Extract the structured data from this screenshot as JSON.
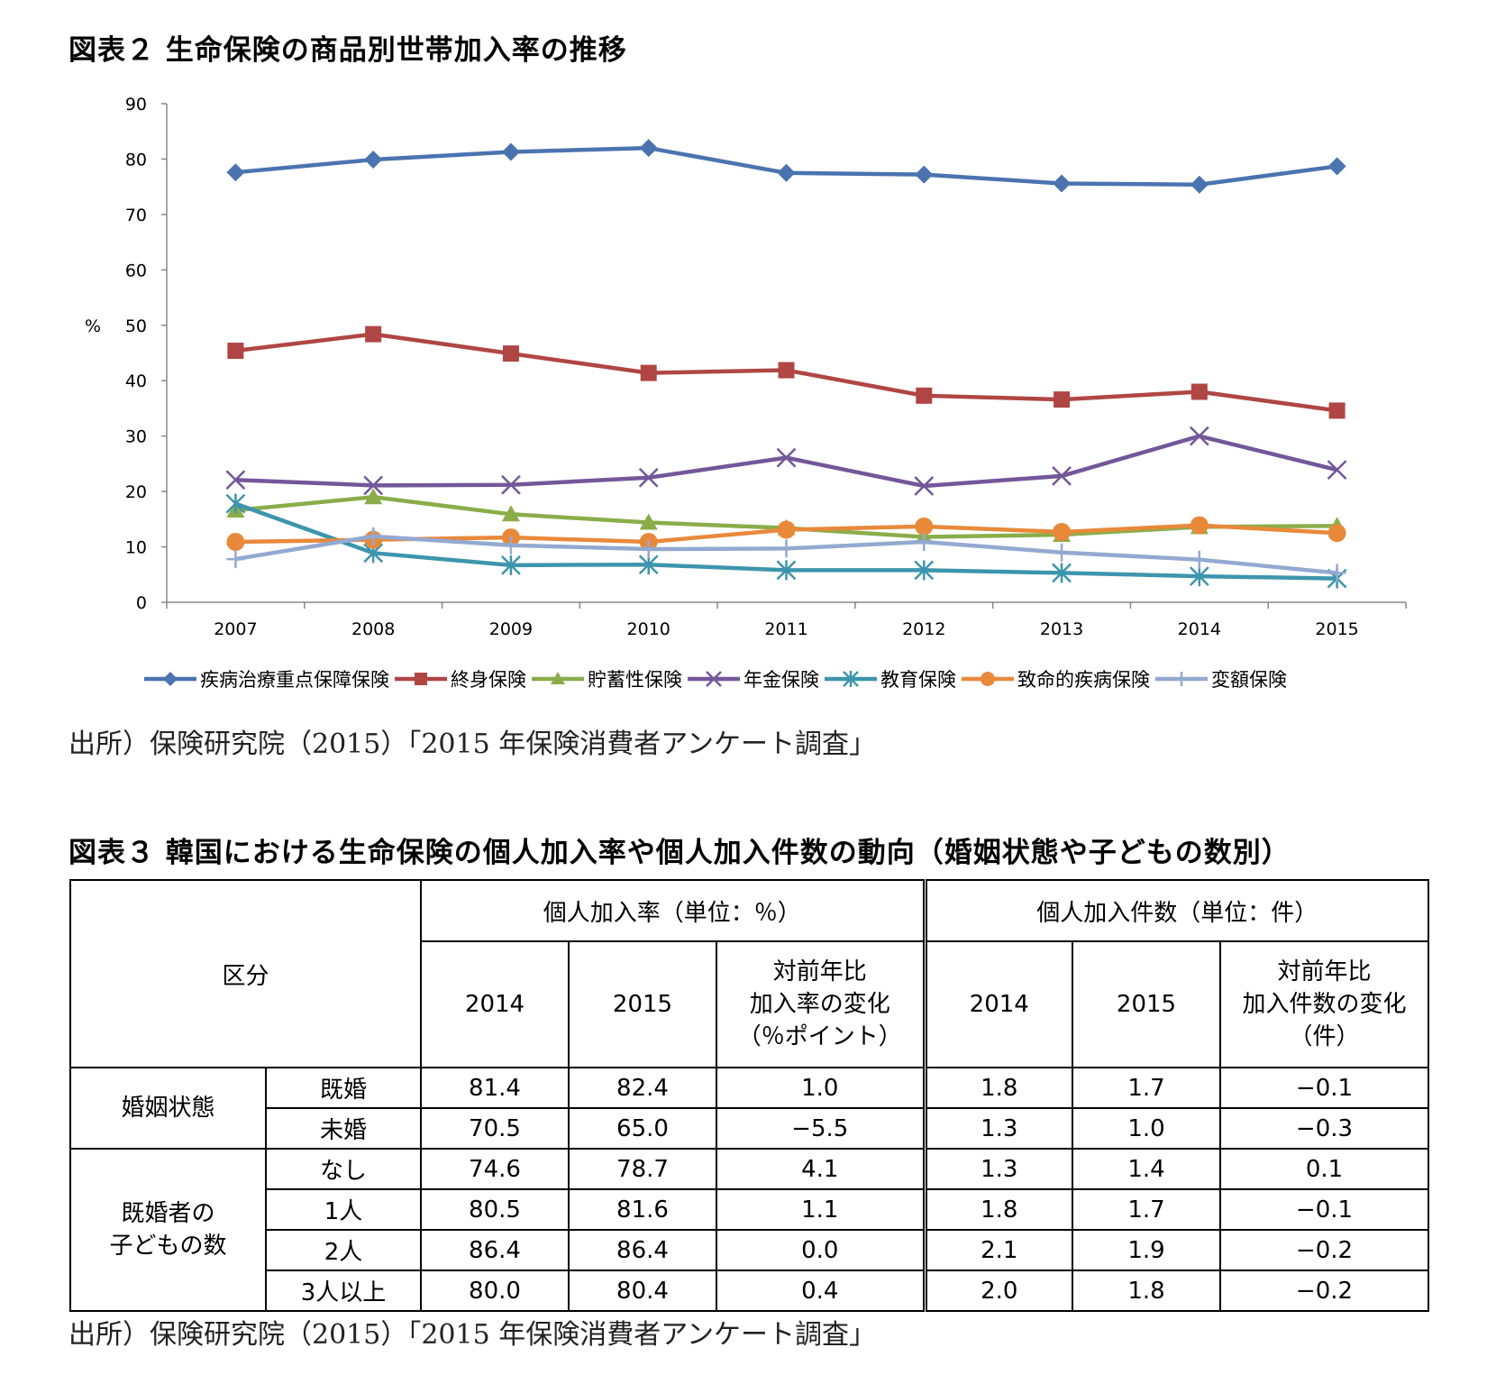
{
  "figure2": {
    "title": "図表２ 生命保険の商品別世帯加入率の推移",
    "source": "出所）保険研究院（2015）「2015 年保険消費者アンケート調査」",
    "chart_data": {
      "type": "line",
      "ylabel": "%",
      "ylim": [
        0,
        90
      ],
      "yticks": [
        "0",
        "10",
        "20",
        "30",
        "40",
        "50",
        "60",
        "70",
        "80",
        "90"
      ],
      "categories": [
        "2007",
        "2008",
        "2009",
        "2010",
        "2011",
        "2012",
        "2013",
        "2014",
        "2015"
      ],
      "legend_position": "bottom",
      "grid": false,
      "series": [
        {
          "name": "疾病治療重点保障保険",
          "color": "#4a73b0",
          "marker": "diamond",
          "values": [
            77.6,
            79.9,
            81.3,
            82.0,
            77.5,
            77.2,
            75.6,
            75.4,
            78.7
          ]
        },
        {
          "name": "終身保険",
          "color": "#b04644",
          "marker": "square",
          "values": [
            45.4,
            48.4,
            44.9,
            41.4,
            41.9,
            37.3,
            36.6,
            38.0,
            34.6
          ]
        },
        {
          "name": "貯蓄性保険",
          "color": "#8aad4a",
          "marker": "triangle",
          "values": [
            16.6,
            19.0,
            15.9,
            14.4,
            13.4,
            11.8,
            12.2,
            13.6,
            13.8
          ]
        },
        {
          "name": "年金保険",
          "color": "#73579a",
          "marker": "x",
          "values": [
            22.1,
            21.1,
            21.2,
            22.5,
            26.1,
            21.0,
            22.8,
            30.0,
            23.9
          ]
        },
        {
          "name": "教育保険",
          "color": "#3d95ad",
          "marker": "star",
          "values": [
            17.8,
            8.9,
            6.7,
            6.8,
            5.8,
            5.8,
            5.3,
            4.7,
            4.3
          ]
        },
        {
          "name": "致命的疾病保険",
          "color": "#e8893a",
          "marker": "circle",
          "values": [
            10.9,
            11.3,
            11.7,
            10.9,
            13.1,
            13.7,
            12.7,
            13.9,
            12.5
          ]
        },
        {
          "name": "変額保険",
          "color": "#93a9d0",
          "marker": "plus",
          "values": [
            7.8,
            11.9,
            10.3,
            9.6,
            9.7,
            10.9,
            9.0,
            7.7,
            5.3
          ]
        }
      ]
    }
  },
  "figure3": {
    "title": "図表３ 韓国における生命保険の個人加入率や個人加入件数の動向（婚姻状態や子どもの数別）",
    "source": "出所）保険研究院（2015）「2015 年保険消費者アンケート調査」",
    "chart_data": {
      "type": "table",
      "header": {
        "category": "区分",
        "rate_group": "個人加入率（単位：％）",
        "count_group": "個人加入件数（単位：件）",
        "col_2014": "2014",
        "col_2015": "2015",
        "rate_change": [
          "対前年比",
          "加入率の変化",
          "（％ポイント）"
        ],
        "count_change": [
          "対前年比",
          "加入件数の変化",
          "（件）"
        ]
      },
      "groups": [
        {
          "label": [
            "婚姻状態"
          ],
          "rows": [
            {
              "label": "既婚",
              "values": [
                "81.4",
                "82.4",
                "1.0",
                "1.8",
                "1.7",
                "−0.1"
              ]
            },
            {
              "label": "未婚",
              "values": [
                "70.5",
                "65.0",
                "−5.5",
                "1.3",
                "1.0",
                "−0.3"
              ]
            }
          ]
        },
        {
          "label": [
            "既婚者の",
            "子どもの数"
          ],
          "rows": [
            {
              "label": "なし",
              "values": [
                "74.6",
                "78.7",
                "4.1",
                "1.3",
                "1.4",
                "0.1"
              ]
            },
            {
              "label": "1人",
              "values": [
                "80.5",
                "81.6",
                "1.1",
                "1.8",
                "1.7",
                "−0.1"
              ]
            },
            {
              "label": "2人",
              "values": [
                "86.4",
                "86.4",
                "0.0",
                "2.1",
                "1.9",
                "−0.2"
              ]
            },
            {
              "label": "3人以上",
              "values": [
                "80.0",
                "80.4",
                "0.4",
                "2.0",
                "1.8",
                "−0.2"
              ]
            }
          ]
        }
      ]
    }
  }
}
